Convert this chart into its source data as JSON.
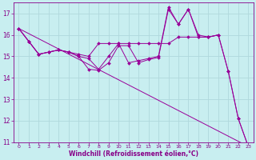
{
  "background_color": "#c8eef0",
  "grid_color": "#b0d8dc",
  "line_color": "#990099",
  "xlabel": "Windchill (Refroidissement éolien,°C)",
  "xlabel_color": "#880088",
  "tick_color": "#880088",
  "xlim": [
    -0.5,
    23.5
  ],
  "ylim": [
    11,
    17.5
  ],
  "yticks": [
    11,
    12,
    13,
    14,
    15,
    16,
    17
  ],
  "xticks": [
    0,
    1,
    2,
    3,
    4,
    5,
    6,
    7,
    8,
    9,
    10,
    11,
    12,
    13,
    14,
    15,
    16,
    17,
    18,
    19,
    20,
    21,
    22,
    23
  ],
  "curves": [
    {
      "x": [
        0,
        1,
        2,
        3,
        4,
        5,
        6,
        7,
        8,
        9,
        10,
        11,
        12,
        13,
        14,
        15,
        16,
        17,
        18,
        19,
        20
      ],
      "y": [
        16.3,
        15.7,
        15.1,
        15.2,
        15.3,
        15.2,
        15.1,
        15.0,
        15.6,
        15.6,
        15.6,
        15.6,
        15.6,
        15.6,
        15.6,
        15.6,
        15.9,
        15.9,
        15.9,
        15.9,
        16.0
      ]
    },
    {
      "x": [
        0,
        1,
        2,
        3,
        4,
        5,
        6,
        7,
        8,
        9,
        10,
        11,
        12,
        13,
        14,
        15,
        16,
        17,
        18,
        19,
        20,
        21,
        22,
        23
      ],
      "y": [
        16.3,
        15.7,
        15.1,
        15.2,
        15.3,
        15.2,
        15.0,
        14.9,
        14.4,
        15.0,
        15.6,
        14.7,
        14.8,
        14.9,
        15.0,
        17.3,
        16.5,
        17.2,
        16.0,
        15.9,
        16.0,
        14.3,
        12.1,
        10.8
      ]
    },
    {
      "x": [
        0,
        1,
        2,
        3,
        4,
        5,
        6,
        7,
        8,
        9,
        10,
        11,
        12,
        13,
        14,
        15,
        16,
        17,
        18,
        19,
        20,
        21,
        22,
        23
      ],
      "y": [
        16.3,
        15.7,
        15.1,
        15.2,
        15.3,
        15.2,
        15.0,
        14.4,
        14.35,
        14.7,
        15.5,
        15.5,
        14.7,
        14.85,
        14.95,
        17.2,
        16.5,
        17.2,
        15.9,
        15.9,
        16.0,
        14.3,
        12.1,
        10.8
      ]
    },
    {
      "x": [
        0,
        23
      ],
      "y": [
        16.3,
        10.8
      ]
    }
  ]
}
